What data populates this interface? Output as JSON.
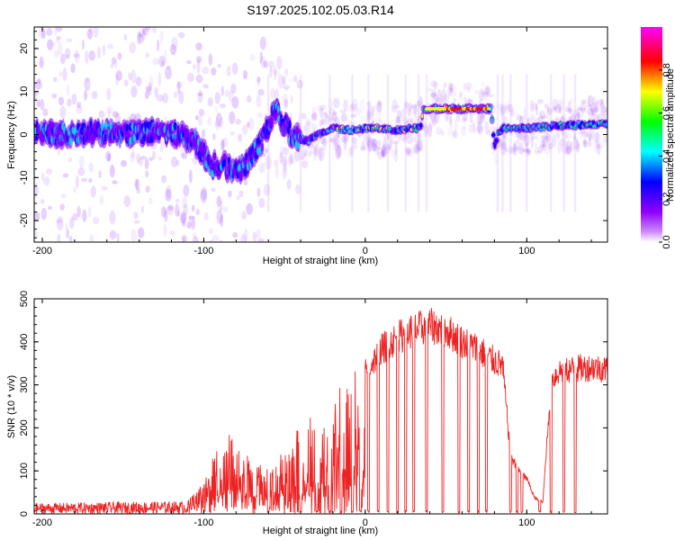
{
  "title": "S197.2025.102.05.03.R14",
  "chart_data": [
    {
      "type": "heatmap",
      "xlabel": "Height of straight line (km)",
      "ylabel": "Frequency (Hz)",
      "xlim": [
        -205,
        150
      ],
      "ylim": [
        -25,
        25
      ],
      "xticks": [
        -200,
        -100,
        0,
        100
      ],
      "yticks": [
        -20,
        -10,
        0,
        10,
        20
      ],
      "colorbar": {
        "label": "Normalized spectral amplitude",
        "range": [
          0.0,
          1.0
        ],
        "ticks": [
          "0.0",
          "0.2",
          "0.4",
          "0.6",
          "0.8"
        ],
        "colormap": [
          "#ffffff",
          "#8f00ff",
          "#0000ff",
          "#00ffff",
          "#00ff00",
          "#ffff00",
          "#ff0000",
          "#ff00ff"
        ]
      },
      "ridge": {
        "x": [
          -205,
          -190,
          -170,
          -150,
          -130,
          -115,
          -105,
          -95,
          -88,
          -80,
          -72,
          -66,
          -62,
          -58,
          -55,
          -50,
          -45,
          -40,
          -35,
          -30,
          -20,
          -10,
          0,
          10,
          20,
          30,
          34,
          36,
          50,
          60,
          70,
          78,
          80,
          82,
          85,
          100,
          120,
          150
        ],
        "y": [
          1,
          0,
          0.5,
          0,
          1,
          0,
          -2,
          -7,
          -7,
          -9,
          -6,
          -3,
          0,
          4,
          5,
          2,
          0,
          -1,
          -1.5,
          0,
          1.5,
          1,
          1.5,
          1.5,
          1,
          1.5,
          1.5,
          6,
          6,
          6,
          6,
          6,
          -3,
          0,
          1.5,
          1.5,
          2,
          2.5
        ]
      }
    },
    {
      "type": "line",
      "xlabel": "Height of straight line (km)",
      "ylabel": "SNR (10 * v/v)",
      "xlim": [
        -205,
        150
      ],
      "ylim": [
        0,
        500
      ],
      "xticks": [
        -200,
        -100,
        0,
        100
      ],
      "yticks": [
        0,
        100,
        200,
        300,
        400,
        500
      ],
      "color": "#ee2222",
      "envelope": {
        "x": [
          -205,
          -110,
          -100,
          -90,
          -80,
          -70,
          -60,
          -50,
          -40,
          -30,
          -20,
          -10,
          0,
          10,
          20,
          30,
          40,
          50,
          60,
          70,
          80,
          85,
          90,
          95,
          100,
          105,
          110,
          115,
          120,
          130,
          140,
          150
        ],
        "y": [
          25,
          30,
          80,
          170,
          200,
          120,
          110,
          150,
          210,
          240,
          280,
          320,
          360,
          420,
          450,
          470,
          480,
          470,
          440,
          420,
          390,
          380,
          150,
          110,
          90,
          40,
          30,
          340,
          365,
          370,
          375,
          370
        ]
      },
      "dropouts_x": [
        -60,
        -40,
        -30,
        -22,
        -15,
        -8,
        -3,
        2,
        8,
        14,
        20,
        25,
        30,
        38,
        48,
        58,
        64,
        70,
        75,
        90,
        94,
        97,
        108,
        115,
        123,
        130
      ]
    }
  ]
}
